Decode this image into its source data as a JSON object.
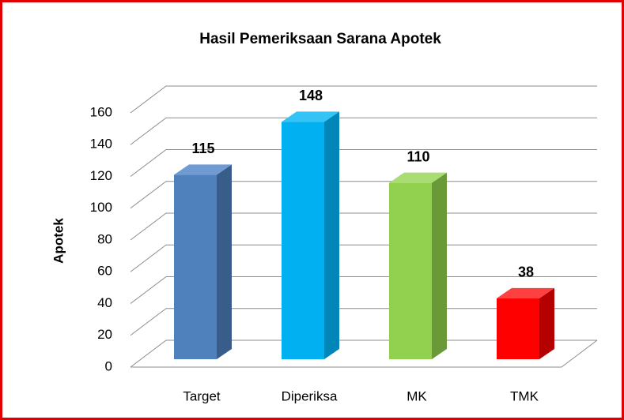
{
  "chart_data": {
    "type": "bar3d",
    "title": "Hasil Pemeriksaan Sarana Apotek",
    "y_label": "Apotek",
    "categories": [
      "Target",
      "Diperiksa",
      "MK",
      "TMK"
    ],
    "values": [
      115,
      148,
      110,
      38
    ],
    "colors": [
      "#4f81bd",
      "#00b0f0",
      "#92d050",
      "#ff0000"
    ],
    "side_colors": [
      "#385d8a",
      "#0086b8",
      "#6a9a38",
      "#b50000"
    ],
    "top_colors": [
      "#6f9ad2",
      "#33c4f5",
      "#a9dc72",
      "#ff4040"
    ],
    "ylim": [
      0,
      160
    ],
    "yticks": [
      0,
      20,
      40,
      60,
      80,
      100,
      120,
      140,
      160
    ],
    "grid": true
  }
}
